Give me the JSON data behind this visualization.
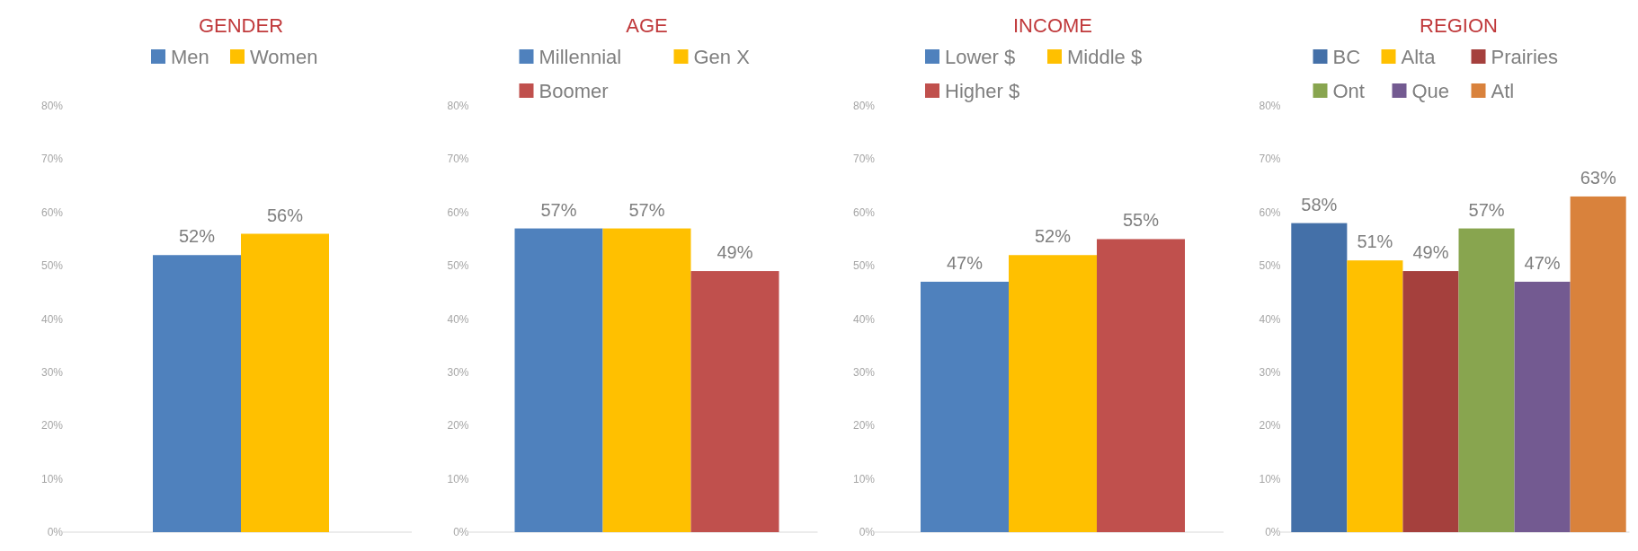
{
  "chart_data": [
    {
      "type": "bar",
      "title": "GENDER",
      "categories": [
        null
      ],
      "series": [
        {
          "name": "Men",
          "color": "#4f81bd",
          "values": [
            52
          ]
        },
        {
          "name": "Women",
          "color": "#ffc000",
          "values": [
            56
          ]
        }
      ],
      "ylim": [
        0,
        80
      ],
      "yticks": [
        {
          "value": 0,
          "label": "0%"
        },
        {
          "value": 10,
          "label": "10%"
        },
        {
          "value": 20,
          "label": "20%"
        },
        {
          "value": 30,
          "label": "30%"
        },
        {
          "value": 40,
          "label": "40%"
        },
        {
          "value": 50,
          "label": "50%"
        },
        {
          "value": 60,
          "label": "60%"
        },
        {
          "value": 70,
          "label": "70%"
        },
        {
          "value": 80,
          "label": "80%"
        }
      ],
      "value_labels": [
        [
          "52%"
        ],
        [
          "56%"
        ]
      ],
      "legend": "top",
      "grid": false
    },
    {
      "type": "bar",
      "title": "AGE",
      "categories": [
        null
      ],
      "series": [
        {
          "name": "Millennial",
          "color": "#4f81bd",
          "values": [
            57
          ]
        },
        {
          "name": "Gen X",
          "color": "#ffc000",
          "values": [
            57
          ]
        },
        {
          "name": "Boomer",
          "color": "#c0504d",
          "values": [
            49
          ]
        }
      ],
      "ylim": [
        0,
        80
      ],
      "yticks": [
        {
          "value": 0,
          "label": "0%"
        },
        {
          "value": 10,
          "label": "10%"
        },
        {
          "value": 20,
          "label": "20%"
        },
        {
          "value": 30,
          "label": "30%"
        },
        {
          "value": 40,
          "label": "40%"
        },
        {
          "value": 50,
          "label": "50%"
        },
        {
          "value": 60,
          "label": "60%"
        },
        {
          "value": 70,
          "label": "70%"
        },
        {
          "value": 80,
          "label": "80%"
        }
      ],
      "value_labels": [
        [
          "57%"
        ],
        [
          "57%"
        ],
        [
          "49%"
        ]
      ],
      "legend": "top",
      "grid": false
    },
    {
      "type": "bar",
      "title": "INCOME",
      "categories": [
        null
      ],
      "series": [
        {
          "name": "Lower $",
          "color": "#4f81bd",
          "values": [
            47
          ]
        },
        {
          "name": "Middle $",
          "color": "#ffc000",
          "values": [
            52
          ]
        },
        {
          "name": "Higher $",
          "color": "#c0504d",
          "values": [
            55
          ]
        }
      ],
      "ylim": [
        0,
        80
      ],
      "yticks": [
        {
          "value": 0,
          "label": "0%"
        },
        {
          "value": 10,
          "label": "10%"
        },
        {
          "value": 20,
          "label": "20%"
        },
        {
          "value": 30,
          "label": "30%"
        },
        {
          "value": 40,
          "label": "40%"
        },
        {
          "value": 50,
          "label": "50%"
        },
        {
          "value": 60,
          "label": "60%"
        },
        {
          "value": 70,
          "label": "70%"
        },
        {
          "value": 80,
          "label": "80%"
        }
      ],
      "value_labels": [
        [
          "47%"
        ],
        [
          "52%"
        ],
        [
          "55%"
        ]
      ],
      "legend": "top",
      "grid": false
    },
    {
      "type": "bar",
      "title": "REGION",
      "categories": [
        null
      ],
      "series": [
        {
          "name": "BC",
          "color": "#4470a8",
          "values": [
            58
          ]
        },
        {
          "name": "Alta",
          "color": "#ffc000",
          "values": [
            51
          ]
        },
        {
          "name": "Prairies",
          "color": "#a5403d",
          "values": [
            49
          ]
        },
        {
          "name": "Ont",
          "color": "#88a54f",
          "values": [
            57
          ]
        },
        {
          "name": "Que",
          "color": "#735a91",
          "values": [
            47
          ]
        },
        {
          "name": "Atl",
          "color": "#d9823c",
          "values": [
            63
          ]
        }
      ],
      "ylim": [
        0,
        80
      ],
      "yticks": [
        {
          "value": 0,
          "label": "0%"
        },
        {
          "value": 10,
          "label": "10%"
        },
        {
          "value": 20,
          "label": "20%"
        },
        {
          "value": 30,
          "label": "30%"
        },
        {
          "value": 40,
          "label": "40%"
        },
        {
          "value": 50,
          "label": "50%"
        },
        {
          "value": 60,
          "label": "60%"
        },
        {
          "value": 70,
          "label": "70%"
        },
        {
          "value": 80,
          "label": "80%"
        }
      ],
      "value_labels": [
        [
          "58%"
        ],
        [
          "51%"
        ],
        [
          "49%"
        ],
        [
          "57%"
        ],
        [
          "47%"
        ],
        [
          "63%"
        ]
      ],
      "legend": "top",
      "grid": false
    }
  ]
}
